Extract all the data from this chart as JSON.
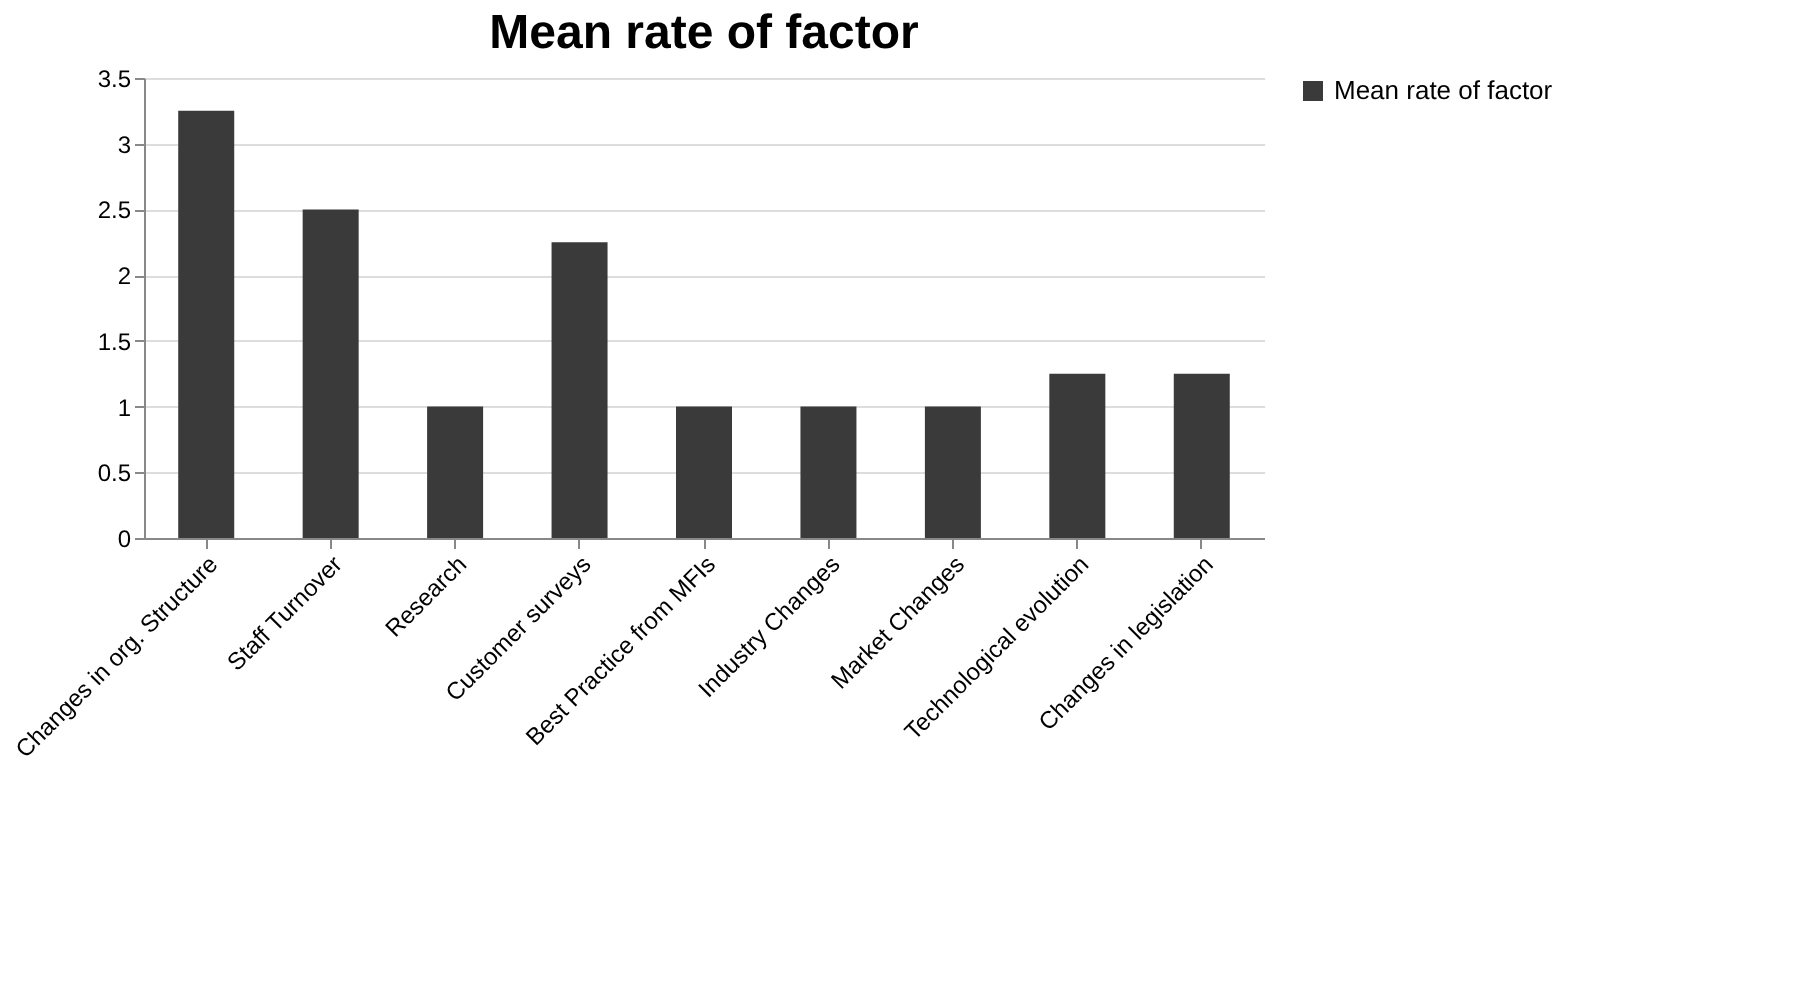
{
  "chart_data": {
    "type": "bar",
    "title": "Mean rate of factor",
    "categories": [
      "Changes in org. Structure",
      "Staff Turnover",
      "Research",
      "Customer surveys",
      "Best Practice from  MFIs",
      "Industry Changes",
      "Market Changes",
      "Technological evolution",
      "Changes in legislation"
    ],
    "series": [
      {
        "name": "Mean rate of factor",
        "color": "#3a3a3a",
        "values": [
          3.25,
          2.5,
          1,
          2.25,
          1,
          1,
          1,
          1.25,
          1.25
        ]
      }
    ],
    "ylim": [
      0,
      3.5
    ],
    "yticks": [
      0,
      0.5,
      1,
      1.5,
      2,
      2.5,
      3,
      3.5
    ],
    "grid": "y",
    "legend": "right"
  }
}
